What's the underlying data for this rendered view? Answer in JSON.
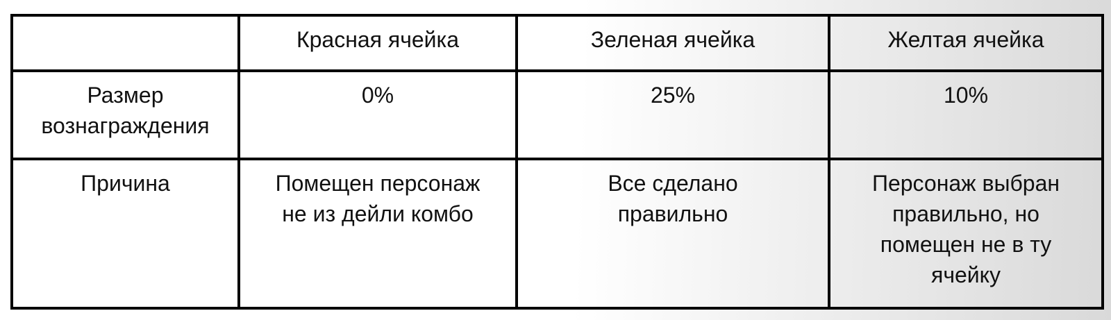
{
  "style": {
    "border_color": "#000000",
    "text_color": "#111111",
    "bg_start": "#ffffff",
    "bg_end": "#d9d9d9"
  },
  "chart_data": {
    "type": "table",
    "title": "",
    "columns": [
      "",
      "Красная ячейка",
      "Зеленая ячейка",
      "Желтая ячейка"
    ],
    "rows": [
      {
        "label": "Размер\nвознаграждения",
        "values": [
          "0%",
          "25%",
          "10%"
        ]
      },
      {
        "label": "Причина",
        "values": [
          "Помещен персонаж\nне из дейли комбо",
          "Все сделано\nправильно",
          "Персонаж выбран\nправильно, но\nпомещен не в ту\nячейку"
        ]
      }
    ]
  }
}
